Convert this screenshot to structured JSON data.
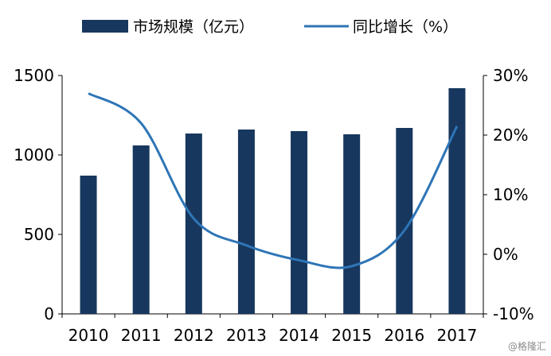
{
  "chart_data": {
    "type": "bar+line",
    "categories": [
      "2010",
      "2011",
      "2012",
      "2013",
      "2014",
      "2015",
      "2016",
      "2017"
    ],
    "series": [
      {
        "name": "市场规模（亿元）",
        "type": "bar",
        "axis": "left",
        "color": "#17375e",
        "values": [
          870,
          1060,
          1135,
          1160,
          1150,
          1130,
          1170,
          1420
        ]
      },
      {
        "name": "同比增长（%）",
        "type": "line",
        "axis": "right",
        "color": "#2e75b6",
        "values": [
          27,
          22,
          6,
          1.5,
          -1,
          -2,
          4,
          21.5
        ]
      }
    ],
    "y_left": {
      "ticks": [
        0,
        500,
        1000,
        1500
      ],
      "range": [
        0,
        1500
      ]
    },
    "y_right": {
      "ticks": [
        "-10%",
        "0%",
        "10%",
        "20%",
        "30%"
      ],
      "range": [
        -10,
        30
      ]
    },
    "grid": false,
    "legend_position": "top"
  },
  "watermark": "@格隆汇"
}
